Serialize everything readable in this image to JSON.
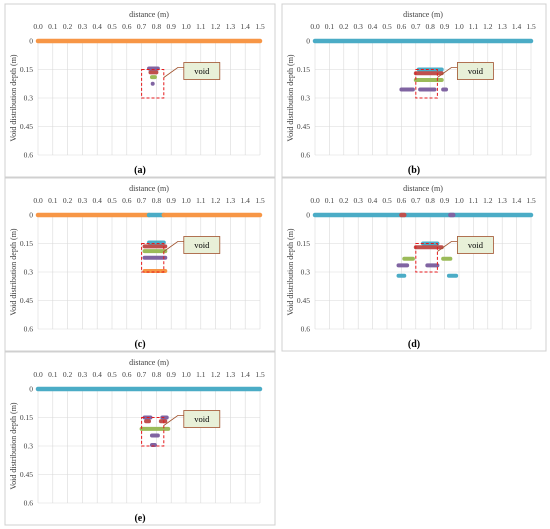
{
  "chart_data": [
    {
      "type": "scatter",
      "caption": "(a)",
      "xlabel": "distance (m)",
      "ylabel": "Void distribution depth (m)",
      "annotation": "void",
      "xlim": [
        0,
        1.5
      ],
      "ylim": [
        0,
        0.6
      ],
      "x_ticks": [
        "0.0",
        "0.1",
        "0.2",
        "0.3",
        "0.4",
        "0.5",
        "0.6",
        "0.7",
        "0.8",
        "0.9",
        "1.0",
        "1.1",
        "1.2",
        "1.3",
        "1.4",
        "1.5"
      ],
      "y_ticks": [
        "0",
        "0.15",
        "0.3",
        "0.45",
        "0.6"
      ],
      "y_inverted": true,
      "x_axis_position": "top",
      "void_box": {
        "x": [
          0.7,
          0.85
        ],
        "depth": [
          0.15,
          0.3
        ]
      },
      "segments": [
        {
          "color": "#f79646",
          "depth": 0,
          "x": [
            0,
            1.5
          ]
        },
        {
          "color": "#8064a2",
          "depth": 0.145,
          "x": [
            0.75,
            0.81
          ]
        },
        {
          "color": "#c0504d",
          "depth": 0.165,
          "x": [
            0.76,
            0.8
          ]
        },
        {
          "color": "#9bbb59",
          "depth": 0.19,
          "x": [
            0.77,
            0.79
          ]
        },
        {
          "color": "#8064a2",
          "depth": 0.225,
          "x": [
            0.775,
            0.775
          ]
        }
      ]
    },
    {
      "type": "scatter",
      "caption": "(b)",
      "xlabel": "distance (m)",
      "ylabel": "Void distribution depth (m)",
      "annotation": "void",
      "xlim": [
        0,
        1.5
      ],
      "ylim": [
        0,
        0.6
      ],
      "x_ticks": [
        "0.0",
        "0.1",
        "0.2",
        "0.3",
        "0.4",
        "0.5",
        "0.6",
        "0.7",
        "0.8",
        "0.9",
        "1.0",
        "1.1",
        "1.2",
        "1.3",
        "1.4",
        "1.5"
      ],
      "y_ticks": [
        "0",
        "0.15",
        "0.3",
        "0.45",
        "0.6"
      ],
      "y_inverted": true,
      "x_axis_position": "top",
      "void_box": {
        "x": [
          0.7,
          0.85
        ],
        "depth": [
          0.15,
          0.3
        ]
      },
      "segments": [
        {
          "color": "#4bacc6",
          "depth": 0,
          "x": [
            0,
            1.5
          ]
        },
        {
          "color": "#4bacc6",
          "depth": 0.15,
          "x": [
            0.72,
            0.88
          ]
        },
        {
          "color": "#c0504d",
          "depth": 0.17,
          "x": [
            0.7,
            0.88
          ]
        },
        {
          "color": "#9bbb59",
          "depth": 0.205,
          "x": [
            0.7,
            0.88
          ]
        },
        {
          "color": "#8064a2",
          "depth": 0.255,
          "x": [
            0.6,
            0.68
          ]
        },
        {
          "color": "#8064a2",
          "depth": 0.255,
          "x": [
            0.73,
            0.83
          ]
        },
        {
          "color": "#8064a2",
          "depth": 0.255,
          "x": [
            0.89,
            0.91
          ]
        }
      ]
    },
    {
      "type": "scatter",
      "caption": "(c)",
      "xlabel": "distance (m)",
      "ylabel": "Void distribution depth (m)",
      "annotation": "void",
      "xlim": [
        0,
        1.5
      ],
      "ylim": [
        0,
        0.6
      ],
      "x_ticks": [
        "0.0",
        "0.1",
        "0.2",
        "0.3",
        "0.4",
        "0.5",
        "0.6",
        "0.7",
        "0.8",
        "0.9",
        "1.0",
        "1.1",
        "1.2",
        "1.3",
        "1.4",
        "1.5"
      ],
      "y_ticks": [
        "0",
        "0.15",
        "0.3",
        "0.45",
        "0.6"
      ],
      "y_inverted": true,
      "x_axis_position": "top",
      "void_box": {
        "x": [
          0.7,
          0.85
        ],
        "depth": [
          0.15,
          0.3
        ]
      },
      "segments": [
        {
          "color": "#f79646",
          "depth": 0,
          "x": [
            0,
            0.75
          ]
        },
        {
          "color": "#4bacc6",
          "depth": 0,
          "x": [
            0.75,
            0.85
          ]
        },
        {
          "color": "#f79646",
          "depth": 0,
          "x": [
            0.85,
            1.5
          ]
        },
        {
          "color": "#4bacc6",
          "depth": 0.145,
          "x": [
            0.75,
            0.85
          ]
        },
        {
          "color": "#c0504d",
          "depth": 0.165,
          "x": [
            0.72,
            0.86
          ]
        },
        {
          "color": "#9bbb59",
          "depth": 0.19,
          "x": [
            0.72,
            0.86
          ]
        },
        {
          "color": "#8064a2",
          "depth": 0.225,
          "x": [
            0.72,
            0.86
          ]
        },
        {
          "color": "#f79646",
          "depth": 0.295,
          "x": [
            0.72,
            0.86
          ]
        }
      ]
    },
    {
      "type": "scatter",
      "caption": "(d)",
      "xlabel": "distance (m)",
      "ylabel": "Void distribution depth (m)",
      "annotation": "void",
      "xlim": [
        0,
        1.5
      ],
      "ylim": [
        0,
        0.6
      ],
      "x_ticks": [
        "0.0",
        "0.1",
        "0.2",
        "0.3",
        "0.4",
        "0.5",
        "0.6",
        "0.7",
        "0.8",
        "0.9",
        "1.0",
        "1.1",
        "1.2",
        "1.3",
        "1.4",
        "1.5"
      ],
      "y_ticks": [
        "0",
        "0.15",
        "0.3",
        "0.45",
        "0.6"
      ],
      "y_inverted": true,
      "x_axis_position": "top",
      "void_box": {
        "x": [
          0.7,
          0.85
        ],
        "depth": [
          0.15,
          0.3
        ]
      },
      "segments": [
        {
          "color": "#4bacc6",
          "depth": 0,
          "x": [
            0,
            1.5
          ]
        },
        {
          "color": "#c0504d",
          "depth": 0,
          "x": [
            0.6,
            0.62
          ]
        },
        {
          "color": "#8064a2",
          "depth": 0,
          "x": [
            0.94,
            0.96
          ]
        },
        {
          "color": "#4bacc6",
          "depth": 0.15,
          "x": [
            0.75,
            0.85
          ]
        },
        {
          "color": "#c0504d",
          "depth": 0.17,
          "x": [
            0.7,
            0.88
          ]
        },
        {
          "color": "#9bbb59",
          "depth": 0.23,
          "x": [
            0.62,
            0.68
          ]
        },
        {
          "color": "#9bbb59",
          "depth": 0.23,
          "x": [
            0.89,
            0.94
          ]
        },
        {
          "color": "#8064a2",
          "depth": 0.265,
          "x": [
            0.58,
            0.64
          ]
        },
        {
          "color": "#8064a2",
          "depth": 0.265,
          "x": [
            0.78,
            0.85
          ]
        },
        {
          "color": "#4bacc6",
          "depth": 0.32,
          "x": [
            0.58,
            0.62
          ]
        },
        {
          "color": "#4bacc6",
          "depth": 0.32,
          "x": [
            0.93,
            0.98
          ]
        }
      ]
    },
    {
      "type": "scatter",
      "caption": "(e)",
      "xlabel": "distance (m)",
      "ylabel": "Void distribution depth (m)",
      "annotation": "void",
      "xlim": [
        0,
        1.5
      ],
      "ylim": [
        0,
        0.6
      ],
      "x_ticks": [
        "0.0",
        "0.1",
        "0.2",
        "0.3",
        "0.4",
        "0.5",
        "0.6",
        "0.7",
        "0.8",
        "0.9",
        "1.0",
        "1.1",
        "1.2",
        "1.3",
        "1.4",
        "1.5"
      ],
      "y_ticks": [
        "0",
        "0.15",
        "0.3",
        "0.45",
        "0.6"
      ],
      "y_inverted": true,
      "x_axis_position": "top",
      "void_box": {
        "x": [
          0.7,
          0.85
        ],
        "depth": [
          0.15,
          0.3
        ]
      },
      "segments": [
        {
          "color": "#4bacc6",
          "depth": 0,
          "x": [
            0,
            1.5
          ]
        },
        {
          "color": "#8064a2",
          "depth": 0.15,
          "x": [
            0.72,
            0.76
          ]
        },
        {
          "color": "#8064a2",
          "depth": 0.15,
          "x": [
            0.84,
            0.87
          ]
        },
        {
          "color": "#c0504d",
          "depth": 0.17,
          "x": [
            0.73,
            0.75
          ]
        },
        {
          "color": "#c0504d",
          "depth": 0.17,
          "x": [
            0.83,
            0.86
          ]
        },
        {
          "color": "#9bbb59",
          "depth": 0.21,
          "x": [
            0.7,
            0.88
          ]
        },
        {
          "color": "#8064a2",
          "depth": 0.245,
          "x": [
            0.77,
            0.81
          ]
        },
        {
          "color": "#8064a2",
          "depth": 0.295,
          "x": [
            0.77,
            0.79
          ]
        }
      ]
    }
  ]
}
